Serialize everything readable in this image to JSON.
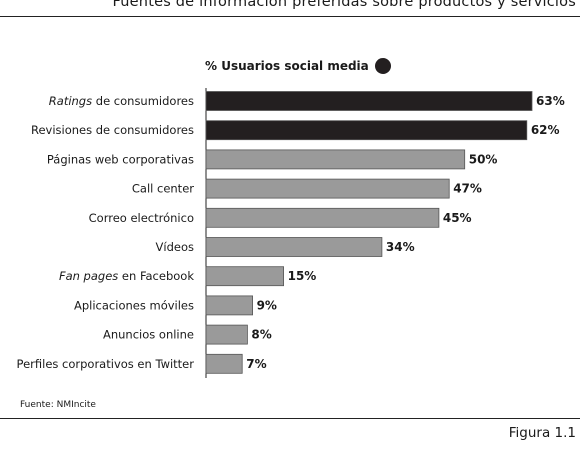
{
  "header": {
    "title": "Fuentes de información preferidas sobre productos y servicios"
  },
  "legend": {
    "label": "% Usuarios social media"
  },
  "chart_data": {
    "type": "bar",
    "orientation": "horizontal",
    "categories": [
      "Ratings de consumidores",
      "Revisiones de consumidores",
      "Páginas web corporativas",
      "Call center",
      "Correo electrónico",
      "Vídeos",
      "Fan pages en Facebook",
      "Aplicaciones móviles",
      "Anuncios online",
      "Perfiles corporativos en Twitter"
    ],
    "italic_prefix": [
      "Ratings",
      "",
      "",
      "",
      "",
      "",
      "Fan pages",
      "",
      "",
      ""
    ],
    "values": [
      63,
      62,
      50,
      47,
      45,
      34,
      15,
      9,
      8,
      7
    ],
    "value_labels": [
      "63%",
      "62%",
      "50%",
      "47%",
      "45%",
      "34%",
      "15%",
      "9%",
      "8%",
      "7%"
    ],
    "highlight": [
      true,
      true,
      false,
      false,
      false,
      false,
      false,
      false,
      false,
      false
    ],
    "xlim": [
      0,
      63
    ],
    "colors": {
      "highlight": "#231f20",
      "normal": "#9a9a9a",
      "border": "#555555"
    }
  },
  "source": "Fuente: NMIncite",
  "figure_label": "Figura 1.1"
}
